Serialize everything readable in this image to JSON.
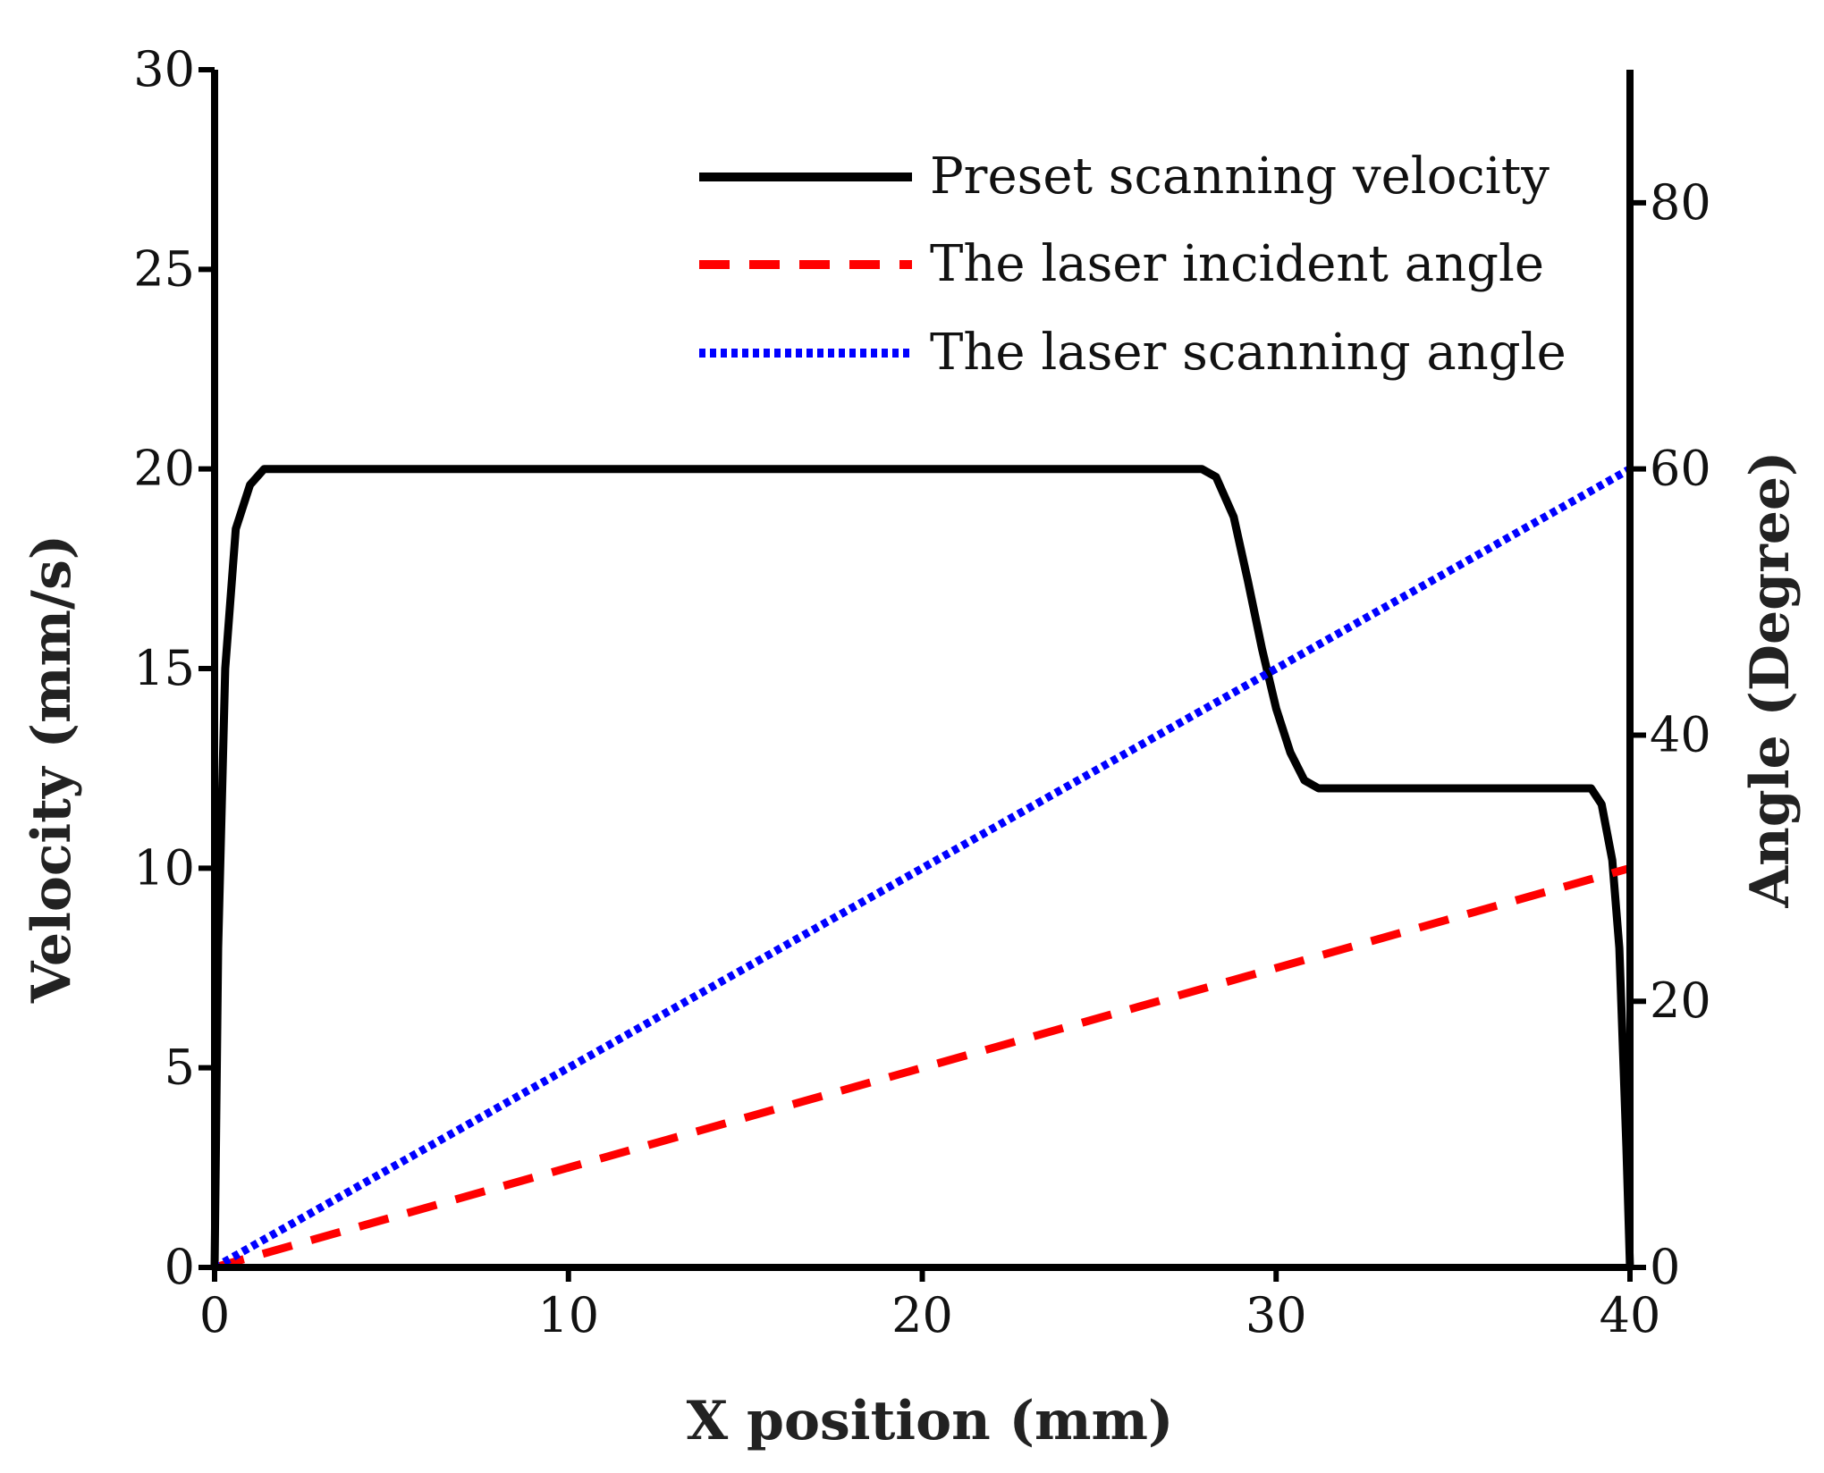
{
  "chart_data": {
    "type": "line",
    "title": "",
    "xlabel": "X position (mm)",
    "ylabel": "Velocity (mm/s)",
    "y2label": "Angle (Degree)",
    "xlim": [
      0,
      40
    ],
    "ylim": [
      0,
      30
    ],
    "y2lim": [
      0,
      90
    ],
    "xticks": [
      0,
      10,
      20,
      30,
      40
    ],
    "yticks": [
      0,
      5,
      10,
      15,
      20,
      25,
      30
    ],
    "y2ticks": [
      0,
      20,
      40,
      60,
      80
    ],
    "grid": false,
    "legend_position": "top-right",
    "series": [
      {
        "name": "Preset scanning velocity",
        "axis": "left",
        "color": "#000000",
        "style": "solid",
        "x": [
          0,
          0.1,
          0.3,
          0.6,
          1.0,
          1.4,
          27.9,
          28.3,
          28.8,
          29.2,
          29.6,
          30.0,
          30.4,
          30.8,
          31.2,
          38.9,
          39.2,
          39.5,
          39.7,
          39.9,
          40.0
        ],
        "values": [
          0,
          8,
          15,
          18.5,
          19.6,
          20,
          20,
          19.8,
          18.8,
          17.2,
          15.5,
          14.0,
          12.9,
          12.2,
          12,
          12,
          11.6,
          10.2,
          8.0,
          3.0,
          0
        ]
      },
      {
        "name": "The laser incident angle",
        "axis": "right",
        "color": "#ff0000",
        "style": "dashed",
        "x": [
          0,
          40
        ],
        "values": [
          0,
          30
        ]
      },
      {
        "name": "The laser scanning angle",
        "axis": "right",
        "color": "#0000ff",
        "style": "dotted",
        "x": [
          0,
          40
        ],
        "values": [
          0,
          60
        ]
      }
    ]
  }
}
